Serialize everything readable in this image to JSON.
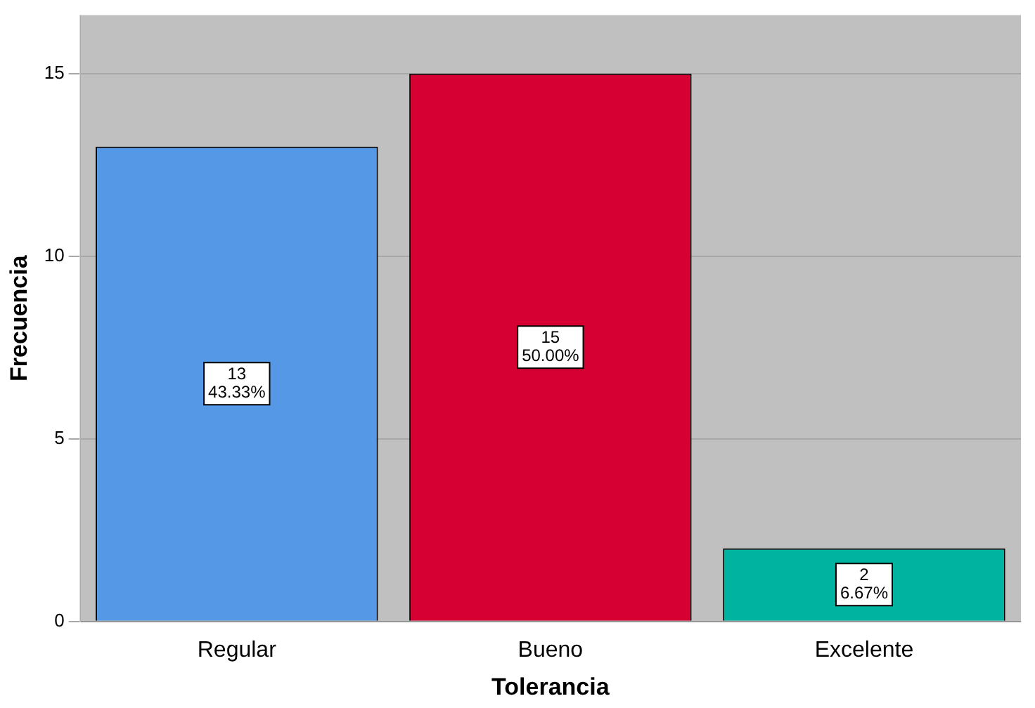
{
  "chart_data": {
    "type": "bar",
    "xlabel": "Tolerancia",
    "ylabel": "Frecuencia",
    "categories": [
      "Regular",
      "Bueno",
      "Excelente"
    ],
    "values": [
      13,
      15,
      2
    ],
    "colors": [
      "#5599e6",
      "#d60032",
      "#00b3a0"
    ],
    "value_labels": [
      "13\n43.33%",
      "15\n50.00%",
      "2\n6.67%"
    ],
    "ylim": [
      0,
      16.6
    ],
    "yticks": [
      0,
      5,
      10,
      15
    ],
    "grid": "y"
  }
}
